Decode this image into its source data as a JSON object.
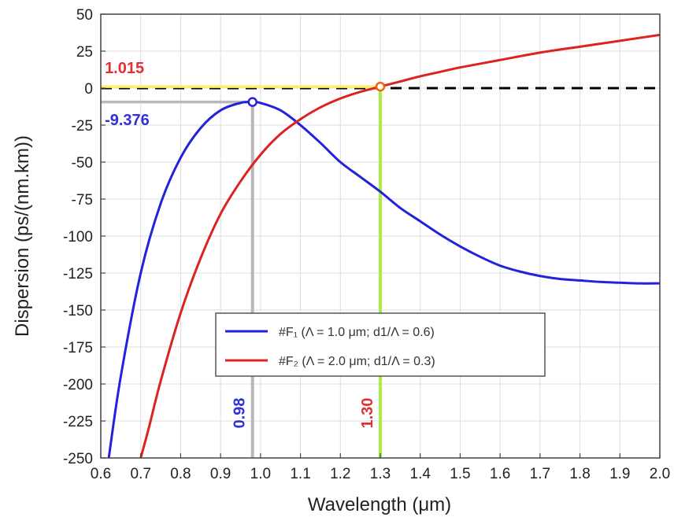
{
  "chart_data": {
    "type": "line",
    "title": "",
    "xlabel": "Wavelength (μm)",
    "ylabel": "Dispersion (ps/(nm.km))",
    "xlim": [
      0.6,
      2.0
    ],
    "ylim": [
      -250,
      50
    ],
    "xticks": [
      0.6,
      0.7,
      0.8,
      0.9,
      1.0,
      1.1,
      1.2,
      1.3,
      1.4,
      1.5,
      1.6,
      1.7,
      1.8,
      1.9,
      2.0
    ],
    "xtick_labels": [
      "0.6",
      "0.7",
      "0.8",
      "0.9",
      "1.0",
      "1.1",
      "1.2",
      "1.3",
      "1.4",
      "1.5",
      "1.6",
      "1.7",
      "1.8",
      "1.9",
      "2.0"
    ],
    "yticks": [
      50,
      25,
      0,
      -25,
      -50,
      -75,
      -100,
      -125,
      -150,
      -175,
      -200,
      -225,
      -250
    ],
    "ytick_labels": [
      "50",
      "25",
      "0",
      "-25",
      "-50",
      "-75",
      "-100",
      "-125",
      "-150",
      "-175",
      "-200",
      "-225",
      "-250"
    ],
    "grid": true,
    "legend_position": "lower-center",
    "series": [
      {
        "name": "#F₁ (Λ = 1.0 μm; d1/Λ = 0.6)",
        "color": "#2222dd",
        "x": [
          0.6,
          0.62,
          0.65,
          0.7,
          0.75,
          0.8,
          0.85,
          0.9,
          0.95,
          0.98,
          1.0,
          1.05,
          1.1,
          1.15,
          1.2,
          1.25,
          1.3,
          1.35,
          1.4,
          1.45,
          1.5,
          1.55,
          1.6,
          1.65,
          1.7,
          1.75,
          1.8,
          1.85,
          1.9,
          1.95,
          2.0
        ],
        "values": [
          -290,
          -250,
          -195,
          -125,
          -78,
          -47,
          -27,
          -15,
          -10,
          -9.376,
          -10,
          -15,
          -25,
          -37,
          -50,
          -60,
          -70,
          -81,
          -90,
          -99,
          -107,
          -114,
          -120,
          -124,
          -127,
          -129,
          -130,
          -131,
          -131.5,
          -132,
          -132
        ]
      },
      {
        "name": "#F₂ (Λ = 2.0 μm; d1/Λ = 0.3)",
        "color": "#dd2222",
        "x": [
          0.7,
          0.72,
          0.75,
          0.8,
          0.85,
          0.9,
          0.95,
          1.0,
          1.05,
          1.1,
          1.15,
          1.2,
          1.25,
          1.3,
          1.35,
          1.4,
          1.45,
          1.5,
          1.6,
          1.7,
          1.8,
          1.9,
          2.0
        ],
        "values": [
          -250,
          -230,
          -198,
          -152,
          -115,
          -85,
          -63,
          -45,
          -31,
          -21,
          -13,
          -7,
          -2.5,
          1.015,
          4.5,
          8,
          11,
          14,
          19,
          24,
          28,
          32,
          36
        ]
      }
    ],
    "reference_lines": [
      {
        "kind": "horizontal",
        "y": 0,
        "style": "dashed",
        "color": "#000000"
      },
      {
        "kind": "horizontal",
        "y": 1.015,
        "x_from": 0.6,
        "x_to": 1.3,
        "color": "#ffee66"
      },
      {
        "kind": "horizontal",
        "y": -9.376,
        "x_from": 0.6,
        "x_to": 0.98,
        "color": "#b8b8b8"
      },
      {
        "kind": "vertical",
        "x": 0.98,
        "y_from": -250,
        "y_to": -9.376,
        "color": "#b8b8b8"
      },
      {
        "kind": "vertical",
        "x": 1.3,
        "y_from": -250,
        "y_to": 1.015,
        "color": "#aaee44"
      }
    ],
    "markers": [
      {
        "x": 0.98,
        "y": -9.376,
        "stroke": "#2222dd"
      },
      {
        "x": 1.3,
        "y": 1.015,
        "stroke": "#ee6600"
      }
    ],
    "annotations": [
      {
        "text": "1.015",
        "x": 0.61,
        "y": 10,
        "color": "#e03030",
        "rotate": false
      },
      {
        "text": "-9.376",
        "x": 0.61,
        "y": -25,
        "color": "#3030dd",
        "rotate": false
      },
      {
        "text": "0.98",
        "x": 0.96,
        "y": -230,
        "color": "#3030dd",
        "rotate": true
      },
      {
        "text": "1.30",
        "x": 1.28,
        "y": -230,
        "color": "#e03030",
        "rotate": true
      }
    ]
  }
}
